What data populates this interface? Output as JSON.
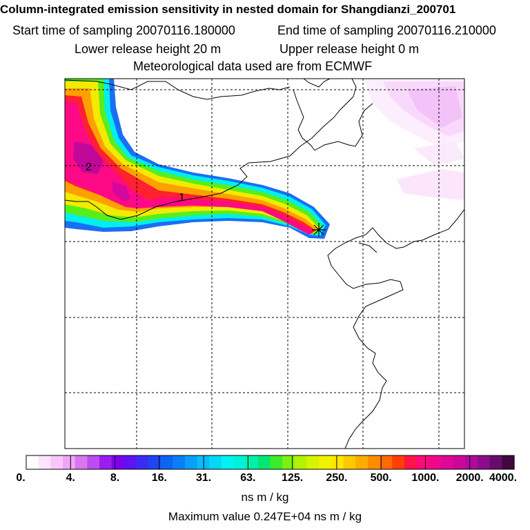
{
  "header": {
    "title": "Column-integrated emission sensitivity in nested domain for Shangdianzi_200701",
    "start_label": "Start time of sampling 20070116.180000",
    "end_label": "End time of sampling 20070116.210000",
    "lower_label": "Lower release height   20 m",
    "upper_label": "Upper release height    0 m",
    "met_label": "Meteorological data used are from ECMWF"
  },
  "map": {
    "contour_labels": [
      "1",
      "2"
    ],
    "receptor_marker": "Shangdianzi"
  },
  "colorbar": {
    "tick_labels": [
      "0.",
      "4.",
      "8.",
      "16.",
      "31.",
      "63.",
      "125.",
      "250.",
      "500.",
      "1000.",
      "2000.",
      "4000."
    ],
    "colors": [
      "#ffffff",
      "#fde3fd",
      "#f9c6fb",
      "#efa6f6",
      "#d777f0",
      "#bb4cf0",
      "#9a1cf0",
      "#7f00ee",
      "#5f12f2",
      "#3b2cf2",
      "#1b46f2",
      "#0e63f3",
      "#0a7ff5",
      "#0b9ef7",
      "#07bcf8",
      "#05d7f4",
      "#00f2f2",
      "#00f2d6",
      "#00f0a8",
      "#00e872",
      "#3aec2c",
      "#7cf10f",
      "#b4f105",
      "#d6f300",
      "#f0f200",
      "#ffe500",
      "#ffc800",
      "#ffac00",
      "#ff8d00",
      "#ff6a00",
      "#ff3f00",
      "#ff1448",
      "#ff0a7a",
      "#f2068c",
      "#df0894",
      "#c9089a",
      "#ad0a9a",
      "#8c0c8d",
      "#660c6d",
      "#40083e"
    ],
    "units": "ns m / kg"
  },
  "footer": {
    "max_value": "Maximum value  0.247E+04 ns m / kg"
  }
}
